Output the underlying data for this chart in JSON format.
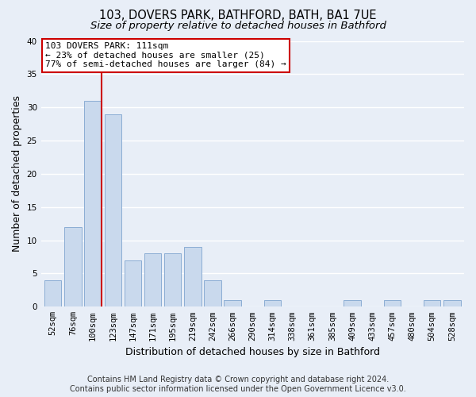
{
  "title": "103, DOVERS PARK, BATHFORD, BATH, BA1 7UE",
  "subtitle": "Size of property relative to detached houses in Bathford",
  "xlabel": "Distribution of detached houses by size in Bathford",
  "ylabel": "Number of detached properties",
  "bar_labels": [
    "52sqm",
    "76sqm",
    "100sqm",
    "123sqm",
    "147sqm",
    "171sqm",
    "195sqm",
    "219sqm",
    "242sqm",
    "266sqm",
    "290sqm",
    "314sqm",
    "338sqm",
    "361sqm",
    "385sqm",
    "409sqm",
    "433sqm",
    "457sqm",
    "480sqm",
    "504sqm",
    "528sqm"
  ],
  "bar_values": [
    4,
    12,
    31,
    29,
    7,
    8,
    8,
    9,
    4,
    1,
    0,
    1,
    0,
    0,
    0,
    1,
    0,
    1,
    0,
    1,
    1
  ],
  "bar_color": "#c9d9ed",
  "bar_edge_color": "#8badd4",
  "highlight_line_color": "#cc0000",
  "highlight_line_xindex": 2.43,
  "annotation_line1": "103 DOVERS PARK: 111sqm",
  "annotation_line2": "← 23% of detached houses are smaller (25)",
  "annotation_line3": "77% of semi-detached houses are larger (84) →",
  "annotation_box_facecolor": "#ffffff",
  "annotation_box_edgecolor": "#cc0000",
  "ylim": [
    0,
    40
  ],
  "yticks": [
    0,
    5,
    10,
    15,
    20,
    25,
    30,
    35,
    40
  ],
  "footer_line1": "Contains HM Land Registry data © Crown copyright and database right 2024.",
  "footer_line2": "Contains public sector information licensed under the Open Government Licence v3.0.",
  "background_color": "#e8eef7",
  "plot_bg_color": "#e8eef7",
  "grid_color": "#ffffff",
  "title_fontsize": 10.5,
  "subtitle_fontsize": 9.5,
  "axis_label_fontsize": 9,
  "tick_fontsize": 7.5,
  "annotation_fontsize": 8,
  "footer_fontsize": 7
}
